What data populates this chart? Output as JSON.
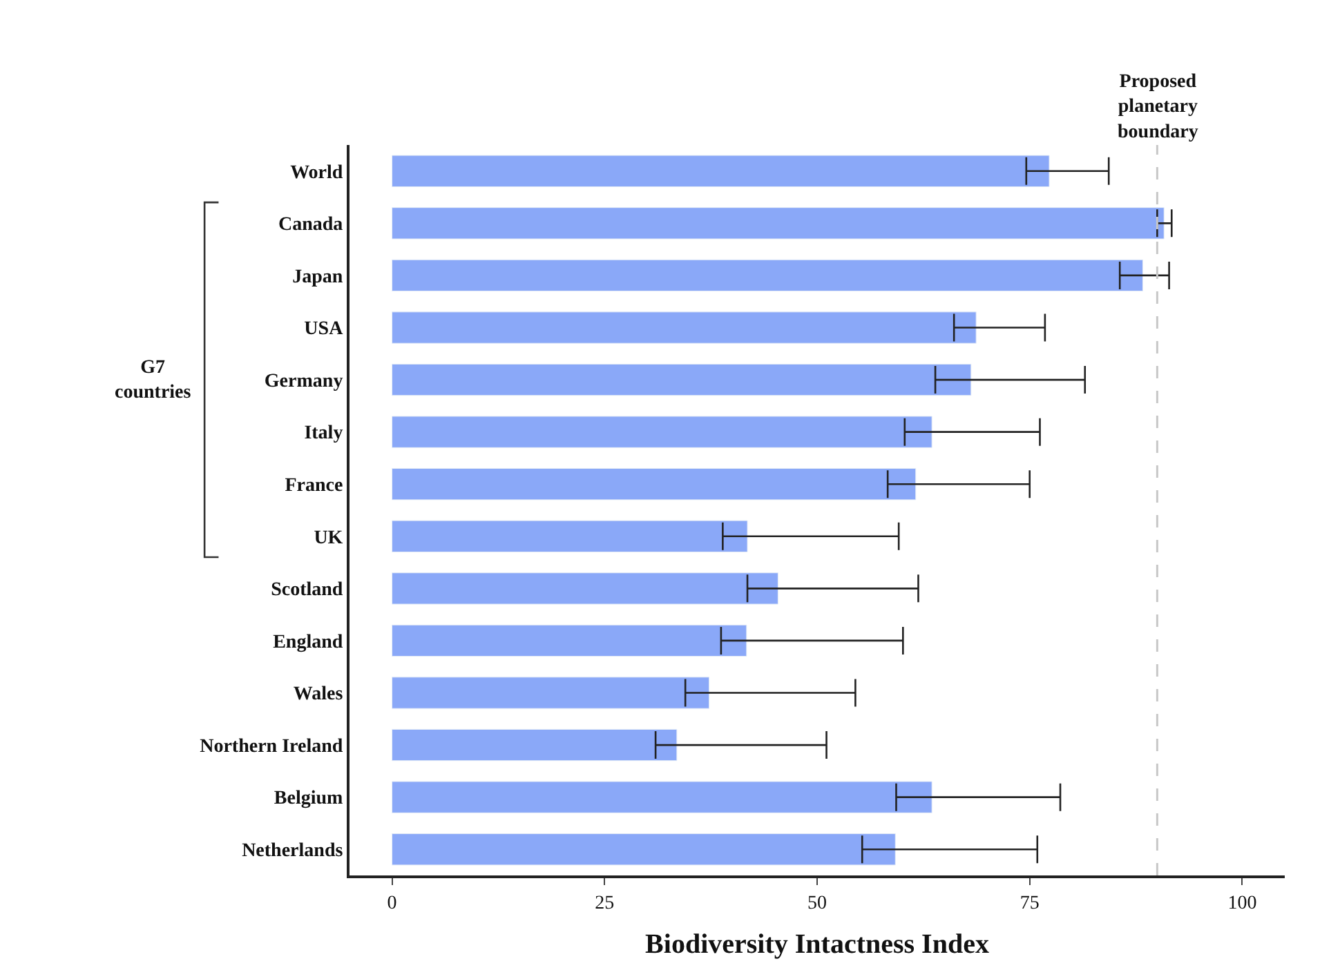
{
  "chart_data": {
    "type": "bar",
    "orientation": "horizontal",
    "xlabel": "Biodiversity Intactness Index",
    "categories": [
      "World",
      "Canada",
      "Japan",
      "USA",
      "Germany",
      "Italy",
      "France",
      "UK",
      "Scotland",
      "England",
      "Wales",
      "Northern Ireland",
      "Belgium",
      "Netherlands"
    ],
    "values": [
      77.3,
      90.8,
      88.3,
      68.7,
      68.1,
      63.5,
      61.6,
      41.8,
      45.4,
      41.7,
      37.3,
      33.5,
      63.5,
      59.2
    ],
    "errors": [
      [
        74.6,
        84.3
      ],
      [
        90.0,
        91.7
      ],
      [
        85.6,
        91.4
      ],
      [
        66.1,
        76.8
      ],
      [
        63.9,
        81.5
      ],
      [
        60.3,
        76.2
      ],
      [
        58.3,
        75.0
      ],
      [
        38.9,
        59.6
      ],
      [
        41.8,
        61.9
      ],
      [
        38.7,
        60.1
      ],
      [
        34.5,
        54.5
      ],
      [
        31.0,
        51.1
      ],
      [
        59.3,
        78.6
      ],
      [
        55.3,
        75.9
      ]
    ],
    "color": "#8aa8f8",
    "xlim": [
      -5,
      105
    ],
    "xticks": [
      0,
      25,
      50,
      75,
      100
    ],
    "ref_lines": [
      {
        "axis": "x",
        "value": 90,
        "label": "Proposed planetary boundary",
        "color": "#c8c8c8",
        "line_style": "dashed"
      }
    ],
    "annotations": [
      "G7 countries"
    ]
  }
}
